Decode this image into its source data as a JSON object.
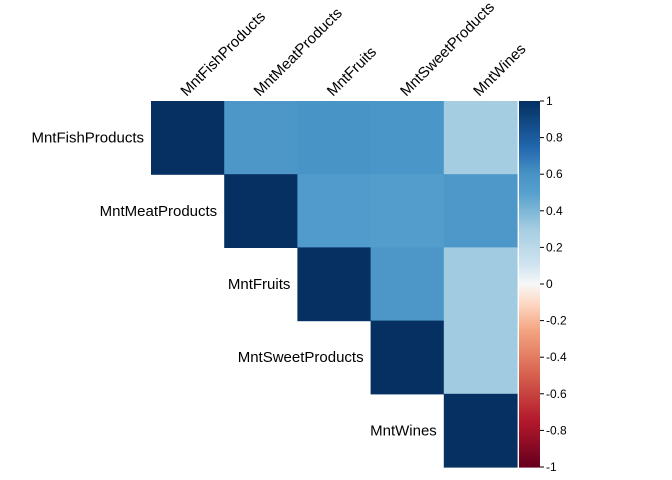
{
  "chart_data": {
    "type": "heatmap",
    "title": "",
    "layout": "upper-triangle",
    "variables": [
      "MntFishProducts",
      "MntMeatProducts",
      "MntFruits",
      "MntSweetProducts",
      "MntWines"
    ],
    "matrix": [
      [
        1.0,
        0.57,
        0.59,
        0.58,
        0.3
      ],
      [
        null,
        1.0,
        0.54,
        0.52,
        0.56
      ],
      [
        null,
        null,
        1.0,
        0.57,
        0.31
      ],
      [
        null,
        null,
        null,
        1.0,
        0.31
      ],
      [
        null,
        null,
        null,
        null,
        1.0
      ]
    ],
    "colorbar": {
      "min": -1,
      "max": 1,
      "ticks": [
        "1",
        "0.8",
        "0.6",
        "0.4",
        "0.2",
        "0",
        "-0.2",
        "-0.4",
        "-0.6",
        "-0.8",
        "-1"
      ],
      "colors": {
        "low": "#67001F",
        "mid": "#F7F7F7",
        "high": "#053061"
      }
    }
  }
}
